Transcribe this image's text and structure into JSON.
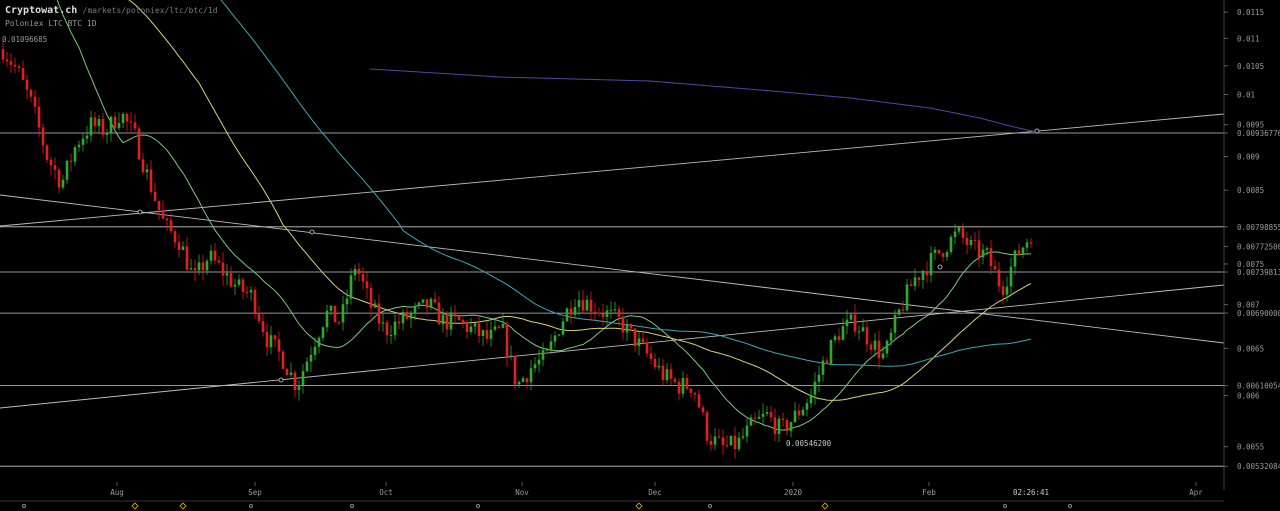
{
  "header": {
    "brand": "Cryptowat.ch",
    "path": "/markets/poloniex/ltc/btc/1d",
    "market": "Poloniex LTC BTC 1D",
    "top_price": "0.01096685"
  },
  "chart_data": {
    "type": "candlestick",
    "exchange": "Poloniex",
    "pair": "LTC/BTC",
    "interval": "1D",
    "ylim": [
      0.00518,
      0.0117
    ],
    "y_scale": "log",
    "grid": false,
    "y_ticks": [
      "0.0115",
      "0.011",
      "0.0105",
      "0.01",
      "0.0095",
      "0.00936776",
      "0.009",
      "0.0085",
      "0.00798855",
      "0.00772500",
      "0.0075",
      "0.00739813",
      "0.007",
      "0.00690000",
      "0.0065",
      "0.00610054",
      "0.006",
      "0.0055",
      "0.00532084"
    ],
    "x_ticks": [
      "Aug",
      "Sep",
      "Oct",
      "Nov",
      "Dec",
      "2020",
      "Feb",
      "Apr"
    ],
    "horizontal_levels": [
      0.00936776,
      0.00798855,
      0.00739813,
      0.0069,
      0.00610054,
      0.00532084
    ],
    "annotations": {
      "high_label": "0.01096685",
      "low_label": "0.00546200",
      "time_label": "02:26:41"
    },
    "ohlc_keypoints": [
      0.0108,
      0.0104,
      0.0098,
      0.009,
      0.0086,
      0.0092,
      0.0095,
      0.0094,
      0.0097,
      0.0093,
      0.0086,
      0.008,
      0.0078,
      0.0073,
      0.0076,
      0.0074,
      0.0072,
      0.0071,
      0.0066,
      0.0064,
      0.0061,
      0.0065,
      0.0069,
      0.0068,
      0.0075,
      0.007,
      0.0067,
      0.0068,
      0.0069,
      0.007,
      0.0068,
      0.0068,
      0.0067,
      0.0066,
      0.0067,
      0.0061,
      0.0063,
      0.0064,
      0.0068,
      0.0071,
      0.007,
      0.0069,
      0.0068,
      0.0066,
      0.0064,
      0.0062,
      0.0061,
      0.0061,
      0.0056,
      0.00549,
      0.00552,
      0.0057,
      0.0058,
      0.00565,
      0.0058,
      0.006,
      0.0064,
      0.0067,
      0.0068,
      0.0066,
      0.0064,
      0.0069,
      0.0073,
      0.0075,
      0.0077,
      0.0079,
      0.0077,
      0.0076,
      0.0072,
      0.0076,
      0.0079
    ]
  }
}
